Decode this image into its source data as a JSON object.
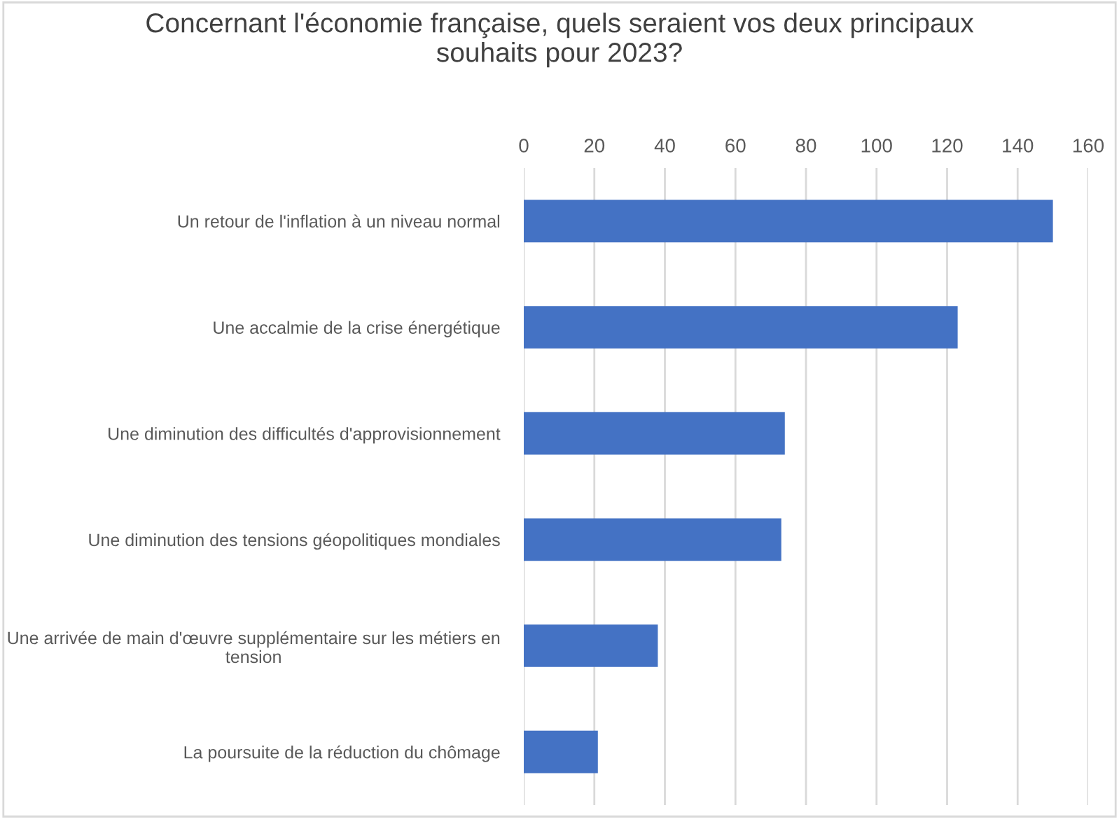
{
  "chart_data": {
    "type": "bar",
    "orientation": "horizontal",
    "title": "Concernant l'économie française, quels seraient vos deux principaux\nsouhaits pour 2023?",
    "categories": [
      "Un retour de l'inflation à un niveau normal",
      "Une accalmie de la crise énergétique",
      "Une diminution des difficultés d'approvisionnement",
      "Une diminution des tensions géopolitiques mondiales",
      "Une arrivée de main d'œuvre supplémentaire sur les métiers en\ntension",
      "La poursuite de la réduction du chômage"
    ],
    "values": [
      150,
      123,
      74,
      73,
      38,
      21
    ],
    "color": "#4472c4",
    "xlim": [
      0,
      160
    ],
    "xticks": [
      0,
      20,
      40,
      60,
      80,
      100,
      120,
      140,
      160
    ],
    "grid": "x",
    "legend": false
  }
}
